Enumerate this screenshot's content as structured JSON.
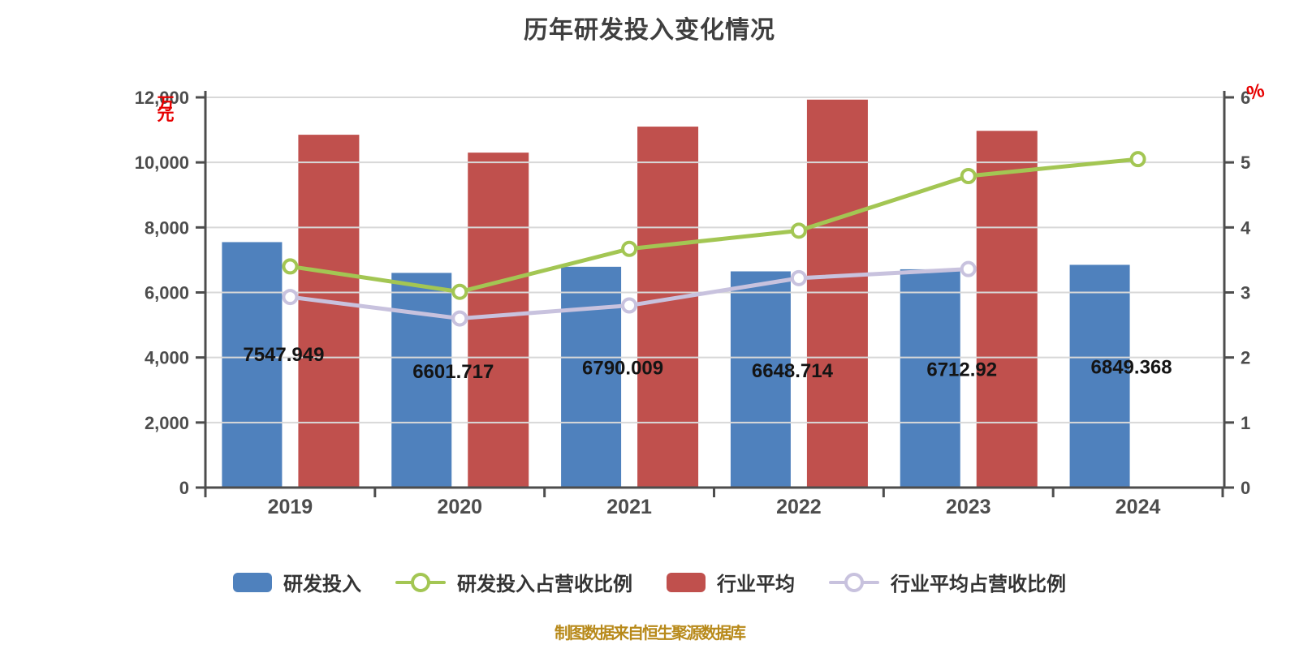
{
  "title": "历年研发投入变化情况",
  "footer": {
    "text": "制图数据来自恒生聚源数据库",
    "color": "#B88A1B"
  },
  "axes": {
    "left_unit": "万元",
    "right_unit": "%",
    "unit_color": "#E60000",
    "tick_color": "#4D4D4D"
  },
  "legend": [
    {
      "label": "研发投入",
      "type": "bar",
      "color": "#4F81BD"
    },
    {
      "label": "研发投入占营收比例",
      "type": "line",
      "color": "#A3C653"
    },
    {
      "label": "行业平均",
      "type": "bar",
      "color": "#C0504D"
    },
    {
      "label": "行业平均占营收比例",
      "type": "line",
      "color": "#C8C2DE"
    }
  ],
  "chart_data": {
    "type": "bar",
    "title": "历年研发投入变化情况",
    "categories": [
      "2019",
      "2020",
      "2021",
      "2022",
      "2023",
      "2024"
    ],
    "series": [
      {
        "name": "研发投入",
        "type": "bar",
        "axis": "left",
        "color": "#4F81BD",
        "values": [
          7547.949,
          6601.717,
          6790.009,
          6648.714,
          6712.92,
          6849.368
        ],
        "labels": [
          "7547.949",
          "6601.717",
          "6790.009",
          "6648.714",
          "6712.92",
          "6849.368"
        ]
      },
      {
        "name": "行业平均",
        "type": "bar",
        "axis": "left",
        "color": "#C0504D",
        "values": [
          10850,
          10300,
          11100,
          11930,
          10970,
          null
        ]
      },
      {
        "name": "研发投入占营收比例",
        "type": "line",
        "axis": "right",
        "color": "#A3C653",
        "values": [
          3.4,
          3.01,
          3.67,
          3.95,
          4.79,
          5.05
        ]
      },
      {
        "name": "行业平均占营收比例",
        "type": "line",
        "axis": "right",
        "color": "#C8C2DE",
        "values": [
          2.93,
          2.6,
          2.8,
          3.22,
          3.36,
          null
        ]
      }
    ],
    "left_axis": {
      "min": 0,
      "max": 12000,
      "step": 2000,
      "unit": "万元"
    },
    "right_axis": {
      "min": 0,
      "max": 6,
      "step": 1,
      "unit": "%"
    },
    "grid": true,
    "legend_position": "bottom"
  }
}
